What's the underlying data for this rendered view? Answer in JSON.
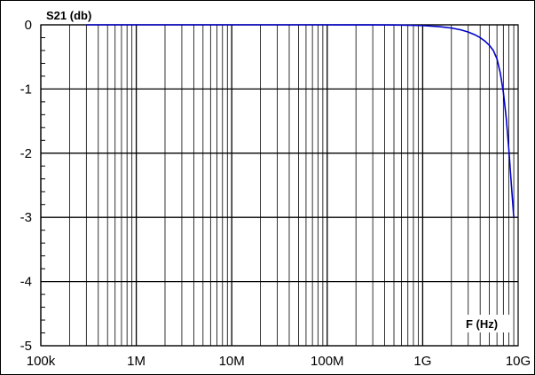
{
  "chart_data": {
    "type": "line",
    "ylabel": "S21 (db)",
    "xlabel": "F (Hz)",
    "x_scale": "log",
    "xlim": [
      100000,
      10000000000
    ],
    "ylim": [
      -5,
      0
    ],
    "x_ticks": [
      {
        "value": 100000,
        "label": "100k"
      },
      {
        "value": 1000000,
        "label": "1M"
      },
      {
        "value": 10000000,
        "label": "10M"
      },
      {
        "value": 100000000,
        "label": "100M"
      },
      {
        "value": 1000000000,
        "label": "1G"
      },
      {
        "value": 10000000000,
        "label": "10G"
      }
    ],
    "y_ticks": [
      {
        "value": 0,
        "label": "0"
      },
      {
        "value": -1,
        "label": "-1"
      },
      {
        "value": -2,
        "label": "-2"
      },
      {
        "value": -3,
        "label": "-3"
      },
      {
        "value": -4,
        "label": "-4"
      },
      {
        "value": -5,
        "label": "-5"
      }
    ],
    "grid": true,
    "colors": {
      "line": "#0000cc",
      "grid": "#000000",
      "frame": "#000000",
      "background": "#ffffff"
    },
    "series": [
      {
        "x": [
          300000,
          1000000,
          10000000,
          100000000,
          300000000,
          500000000,
          700000000,
          1000000000,
          1500000000,
          2000000000,
          2500000000,
          3000000000,
          3500000000,
          4000000000,
          4500000000,
          5000000000,
          5500000000,
          6000000000,
          6500000000,
          7000000000,
          7500000000,
          8000000000,
          8500000000,
          9000000000
        ],
        "y": [
          0,
          0,
          0,
          0,
          -0.001,
          -0.003,
          -0.006,
          -0.012,
          -0.028,
          -0.05,
          -0.078,
          -0.112,
          -0.153,
          -0.2,
          -0.255,
          -0.32,
          -0.4,
          -0.53,
          -0.75,
          -1.05,
          -1.45,
          -1.95,
          -2.5,
          -3.0
        ]
      }
    ]
  }
}
